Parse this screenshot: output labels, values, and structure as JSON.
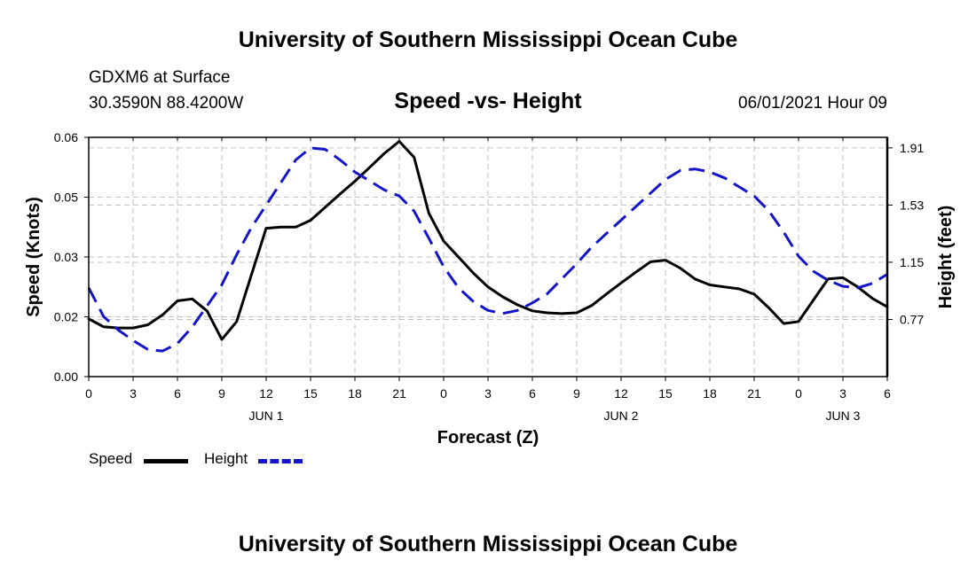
{
  "header": {
    "title_top": "University of Southern Mississippi Ocean Cube",
    "title_bottom": "University of Southern Mississippi Ocean Cube",
    "station": "GDXM6 at Surface",
    "coords": "30.3590N  88.4200W",
    "subtitle": "Speed -vs- Height",
    "datetime": "06/01/2021 Hour 09"
  },
  "legend": {
    "speed_label": "Speed",
    "height_label": "Height"
  },
  "colors": {
    "speed": "#000000",
    "height": "#1414c8",
    "grid": "#c0c0c0"
  },
  "chart_data": {
    "type": "line",
    "xlabel": "Forecast (Z)",
    "ylabel_left": "Speed (Knots)",
    "ylabel_right": "Height (feet)",
    "x_hours_range": [
      0,
      54
    ],
    "x_tick_hours": [
      0,
      3,
      6,
      9,
      12,
      15,
      18,
      21,
      24,
      27,
      30,
      33,
      36,
      39,
      42,
      45,
      48,
      51,
      54
    ],
    "x_tick_labels": [
      "0",
      "3",
      "6",
      "9",
      "12",
      "15",
      "18",
      "21",
      "0",
      "3",
      "6",
      "9",
      "12",
      "15",
      "18",
      "21",
      "0",
      "3",
      "6"
    ],
    "day_labels": [
      {
        "hour": 12,
        "label": "JUN 1"
      },
      {
        "hour": 36,
        "label": "JUN 2"
      },
      {
        "hour": 51,
        "label": "JUN 3"
      }
    ],
    "ylim_left": [
      0.0,
      0.06
    ],
    "left_ticks": [
      0.0,
      0.015,
      0.03,
      0.045,
      0.06
    ],
    "left_tick_labels": [
      "0.00",
      "0.02",
      "0.03",
      "0.05",
      "0.06"
    ],
    "ylim_right": [
      0.39,
      1.98
    ],
    "right_ticks": [
      0.77,
      1.15,
      1.53,
      1.91
    ],
    "right_tick_labels": [
      "0.77",
      "1.15",
      "1.53",
      "1.91"
    ],
    "grid": true,
    "series": [
      {
        "name": "Speed",
        "axis": "left",
        "style": "solid",
        "x": [
          0,
          1,
          2,
          3,
          4,
          5,
          6,
          7,
          8,
          9,
          10,
          11,
          12,
          13,
          14,
          15,
          16,
          17,
          18,
          19,
          20,
          21,
          22,
          23,
          24,
          25,
          26,
          27,
          28,
          29,
          30,
          31,
          32,
          33,
          34,
          35,
          36,
          37,
          38,
          39,
          40,
          41,
          42,
          43,
          44,
          45,
          46,
          47,
          48,
          49,
          50,
          51,
          52,
          53,
          54
        ],
        "values": [
          0.0145,
          0.0125,
          0.0122,
          0.0122,
          0.013,
          0.0155,
          0.019,
          0.0195,
          0.0165,
          0.0093,
          0.0138,
          0.0255,
          0.0372,
          0.0375,
          0.0375,
          0.0392,
          0.0425,
          0.0458,
          0.049,
          0.0525,
          0.056,
          0.059,
          0.055,
          0.041,
          0.034,
          0.03,
          0.026,
          0.0225,
          0.02,
          0.018,
          0.0165,
          0.016,
          0.0158,
          0.016,
          0.0178,
          0.0207,
          0.0235,
          0.0262,
          0.0288,
          0.0292,
          0.0272,
          0.0245,
          0.023,
          0.0225,
          0.022,
          0.0207,
          0.0172,
          0.0133,
          0.0138,
          0.0192,
          0.0245,
          0.0248,
          0.0225,
          0.0196,
          0.0175
        ]
      },
      {
        "name": "Height",
        "axis": "right",
        "style": "dashed",
        "x": [
          0,
          1,
          2,
          3,
          4,
          5,
          6,
          7,
          8,
          9,
          10,
          11,
          12,
          13,
          14,
          15,
          16,
          17,
          18,
          19,
          20,
          21,
          22,
          23,
          24,
          25,
          26,
          27,
          28,
          29,
          30,
          31,
          32,
          33,
          34,
          35,
          36,
          37,
          38,
          39,
          40,
          41,
          42,
          43,
          44,
          45,
          46,
          47,
          48,
          49,
          50,
          51,
          52,
          53,
          54
        ],
        "values": [
          0.98,
          0.79,
          0.7,
          0.63,
          0.57,
          0.56,
          0.61,
          0.72,
          0.86,
          1.0,
          1.2,
          1.38,
          1.53,
          1.68,
          1.83,
          1.91,
          1.9,
          1.83,
          1.75,
          1.69,
          1.63,
          1.59,
          1.49,
          1.31,
          1.12,
          0.98,
          0.89,
          0.83,
          0.81,
          0.83,
          0.88,
          0.94,
          1.04,
          1.14,
          1.25,
          1.34,
          1.43,
          1.52,
          1.61,
          1.7,
          1.76,
          1.77,
          1.75,
          1.71,
          1.65,
          1.59,
          1.49,
          1.35,
          1.19,
          1.09,
          1.03,
          0.99,
          0.98,
          1.01,
          1.07
        ]
      }
    ]
  }
}
